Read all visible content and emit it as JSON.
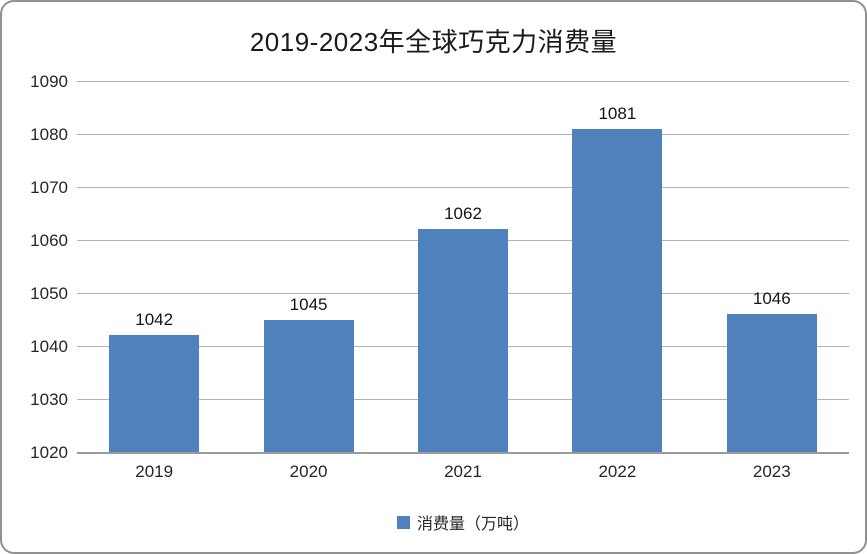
{
  "chart_data": {
    "type": "bar",
    "title": "2019-2023年全球巧克力消费量",
    "categories": [
      "2019",
      "2020",
      "2021",
      "2022",
      "2023"
    ],
    "series": [
      {
        "name": "消费量（万吨）",
        "values": [
          1042,
          1045,
          1062,
          1081,
          1046
        ]
      }
    ],
    "data_labels": [
      1042,
      1045,
      1062,
      1081,
      1046
    ],
    "xlabel": "",
    "ylabel": "",
    "ylim": [
      1020,
      1090
    ],
    "yticks": [
      1020,
      1030,
      1040,
      1050,
      1060,
      1070,
      1080,
      1090
    ],
    "grid": "horizontal",
    "legend_position": "bottom",
    "bar_color": "#4F81BD"
  },
  "legend": {
    "label": "消费量（万吨）"
  },
  "colors": {
    "bar": "#4F81BD",
    "gridline": "#b3b3b3",
    "axis_line": "#9a9a9a",
    "frame_border": "#919191",
    "text": "#262626",
    "background": "#ffffff"
  }
}
